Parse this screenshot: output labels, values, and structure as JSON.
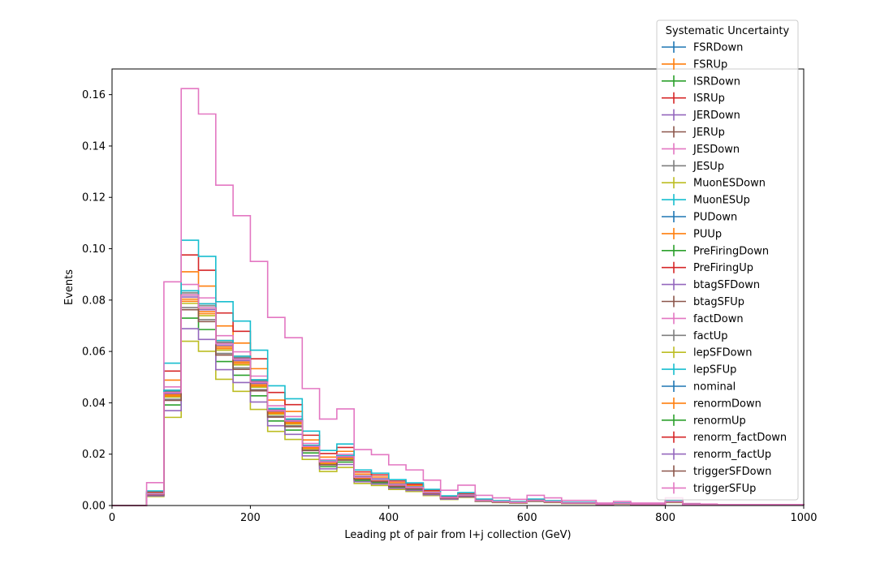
{
  "chart_data": {
    "type": "step-histogram",
    "xlabel": "Leading pt of pair from l+j collection (GeV)",
    "ylabel": "Events",
    "xlim": [
      0,
      1000
    ],
    "ylim": [
      0,
      0.17
    ],
    "xticks": [
      "0",
      "200",
      "400",
      "600",
      "800",
      "1000"
    ],
    "yticks": [
      "0.00",
      "0.02",
      "0.04",
      "0.06",
      "0.08",
      "0.10",
      "0.12",
      "0.14",
      "0.16"
    ],
    "grid": false,
    "legend": {
      "title": "Systematic Uncertainty",
      "placement": "upper-right, outside axes top"
    },
    "bin_edges": [
      0,
      25,
      50,
      75,
      100,
      125,
      150,
      175,
      200,
      225,
      250,
      275,
      300,
      325,
      350,
      375,
      400,
      425,
      450,
      475,
      500,
      525,
      550,
      575,
      600,
      625,
      650,
      675,
      700,
      725,
      750,
      775,
      800,
      825,
      850,
      875,
      900,
      925,
      950,
      975,
      1000
    ],
    "base_shape": [
      0,
      0,
      0.0045,
      0.044,
      0.082,
      0.077,
      0.063,
      0.057,
      0.048,
      0.037,
      0.033,
      0.023,
      0.017,
      0.019,
      0.011,
      0.01,
      0.008,
      0.007,
      0.005,
      0.003,
      0.004,
      0.002,
      0.0015,
      0.0012,
      0.002,
      0.0015,
      0.001,
      0.001,
      0.0005,
      0.0008,
      0.0005,
      0.0005,
      0.0015,
      0.0004,
      0.0003,
      0.0002,
      0.0002,
      0.0002,
      0.0002,
      0.0002
    ],
    "series": [
      {
        "name": "FSRDown",
        "color": "#1f77b4",
        "scale": 1.0
      },
      {
        "name": "FSRUp",
        "color": "#ff7f0e",
        "scale": 1.11
      },
      {
        "name": "ISRDown",
        "color": "#2ca02c",
        "scale": 0.89
      },
      {
        "name": "ISRUp",
        "color": "#d62728",
        "scale": 1.19
      },
      {
        "name": "JERDown",
        "color": "#9467bd",
        "scale": 0.99
      },
      {
        "name": "JERUp",
        "color": "#8c564b",
        "scale": 1.0
      },
      {
        "name": "JESDown",
        "color": "#e377c2",
        "scale": 1.05
      },
      {
        "name": "JESUp",
        "color": "#7f7f7f",
        "scale": 0.94
      },
      {
        "name": "MuonESDown",
        "color": "#bcbd22",
        "scale": 0.78
      },
      {
        "name": "MuonESUp",
        "color": "#17becf",
        "scale": 1.26
      },
      {
        "name": "PUDown",
        "color": "#1f77b4",
        "scale": 1.0
      },
      {
        "name": "PUUp",
        "color": "#ff7f0e",
        "scale": 0.98
      },
      {
        "name": "PreFiringDown",
        "color": "#2ca02c",
        "scale": 1.0
      },
      {
        "name": "PreFiringUp",
        "color": "#d62728",
        "scale": 1.0
      },
      {
        "name": "btagSFDown",
        "color": "#9467bd",
        "scale": 0.84
      },
      {
        "name": "btagSFUp",
        "color": "#8c564b",
        "scale": 1.02
      },
      {
        "name": "factDown",
        "color": "#e377c2",
        "scale": 1.98
      },
      {
        "name": "factUp",
        "color": "#7f7f7f",
        "scale": 1.01
      },
      {
        "name": "lepSFDown",
        "color": "#bcbd22",
        "scale": 0.96
      },
      {
        "name": "lepSFUp",
        "color": "#17becf",
        "scale": 1.02
      },
      {
        "name": "nominal",
        "color": "#1f77b4",
        "scale": 1.0
      },
      {
        "name": "renormDown",
        "color": "#ff7f0e",
        "scale": 0.97
      },
      {
        "name": "renormUp",
        "color": "#2ca02c",
        "scale": 1.0
      },
      {
        "name": "renorm_factDown",
        "color": "#d62728",
        "scale": 1.0
      },
      {
        "name": "renorm_factUp",
        "color": "#9467bd",
        "scale": 1.0
      },
      {
        "name": "triggerSFDown",
        "color": "#8c564b",
        "scale": 0.93
      },
      {
        "name": "triggerSFUp",
        "color": "#e377c2",
        "scale": 1.0
      }
    ]
  }
}
